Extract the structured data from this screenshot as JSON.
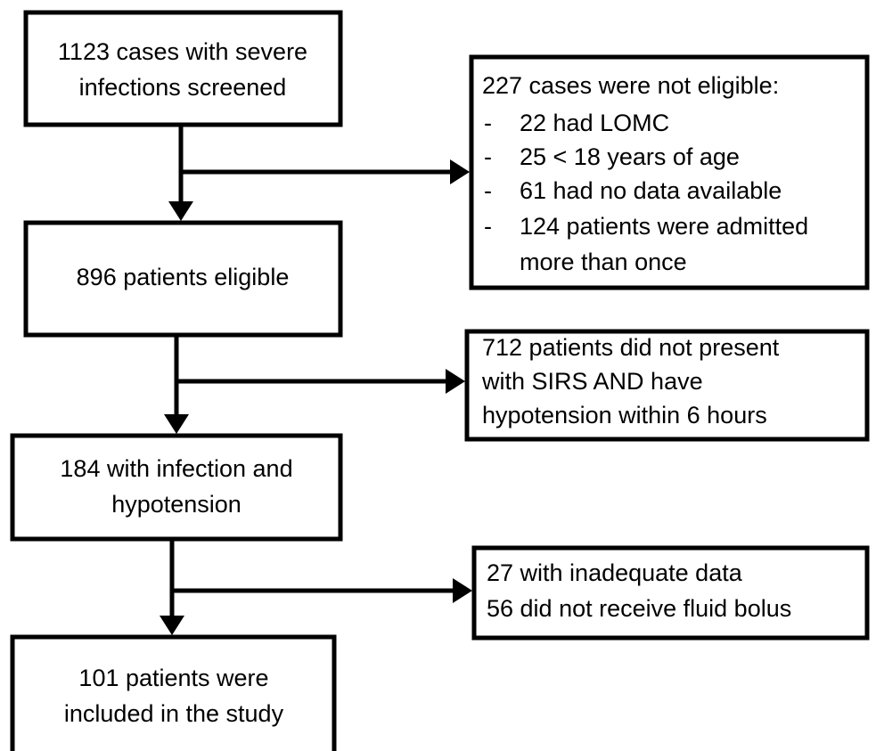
{
  "nodes": [
    {
      "lines": [
        "1123 cases with severe",
        "infections screened"
      ]
    },
    {
      "lines": [
        "896 patients eligible"
      ]
    },
    {
      "lines": [
        "184 with infection and",
        "hypotension"
      ]
    },
    {
      "lines": [
        "101 patients were",
        "included in the study"
      ]
    }
  ],
  "exclusions": [
    {
      "heading": "227 cases were not eligible:",
      "items": [
        {
          "bullet": "-",
          "lines": [
            "22 had LOMC"
          ]
        },
        {
          "bullet": "-",
          "lines": [
            "25 < 18 years of age"
          ]
        },
        {
          "bullet": "-",
          "lines": [
            "61 had no data available"
          ]
        },
        {
          "bullet": "-",
          "lines": [
            "124 patients were admitted",
            "more than once"
          ]
        }
      ]
    },
    {
      "lines": [
        "712 patients did not present",
        "with SIRS AND have",
        "hypotension  within 6 hours"
      ]
    },
    {
      "lines": [
        "27 with inadequate data",
        "56 did not receive fluid bolus"
      ]
    }
  ]
}
